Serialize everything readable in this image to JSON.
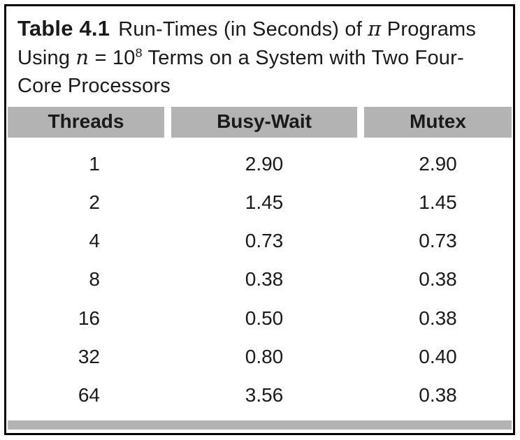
{
  "caption": {
    "label": "Table 4.1",
    "part1": "Run-Times (in Seconds) of ",
    "pi": "π",
    "part2": " Programs Using ",
    "n": "n",
    "eq": " = 10",
    "exp": "8",
    "part3": " Terms on a System with Two Four-Core Processors"
  },
  "table": {
    "headers": [
      "Threads",
      "Busy-Wait",
      "Mutex"
    ],
    "rows": [
      {
        "threads": "1",
        "busy_wait": "2.90",
        "mutex": "2.90"
      },
      {
        "threads": "2",
        "busy_wait": "1.45",
        "mutex": "1.45"
      },
      {
        "threads": "4",
        "busy_wait": "0.73",
        "mutex": "0.73"
      },
      {
        "threads": "8",
        "busy_wait": "0.38",
        "mutex": "0.38"
      },
      {
        "threads": "16",
        "busy_wait": "0.50",
        "mutex": "0.38"
      },
      {
        "threads": "32",
        "busy_wait": "0.80",
        "mutex": "0.40"
      },
      {
        "threads": "64",
        "busy_wait": "3.56",
        "mutex": "0.38"
      }
    ]
  },
  "colors": {
    "header_bg": "#b3b3b3",
    "border": "#000000"
  }
}
